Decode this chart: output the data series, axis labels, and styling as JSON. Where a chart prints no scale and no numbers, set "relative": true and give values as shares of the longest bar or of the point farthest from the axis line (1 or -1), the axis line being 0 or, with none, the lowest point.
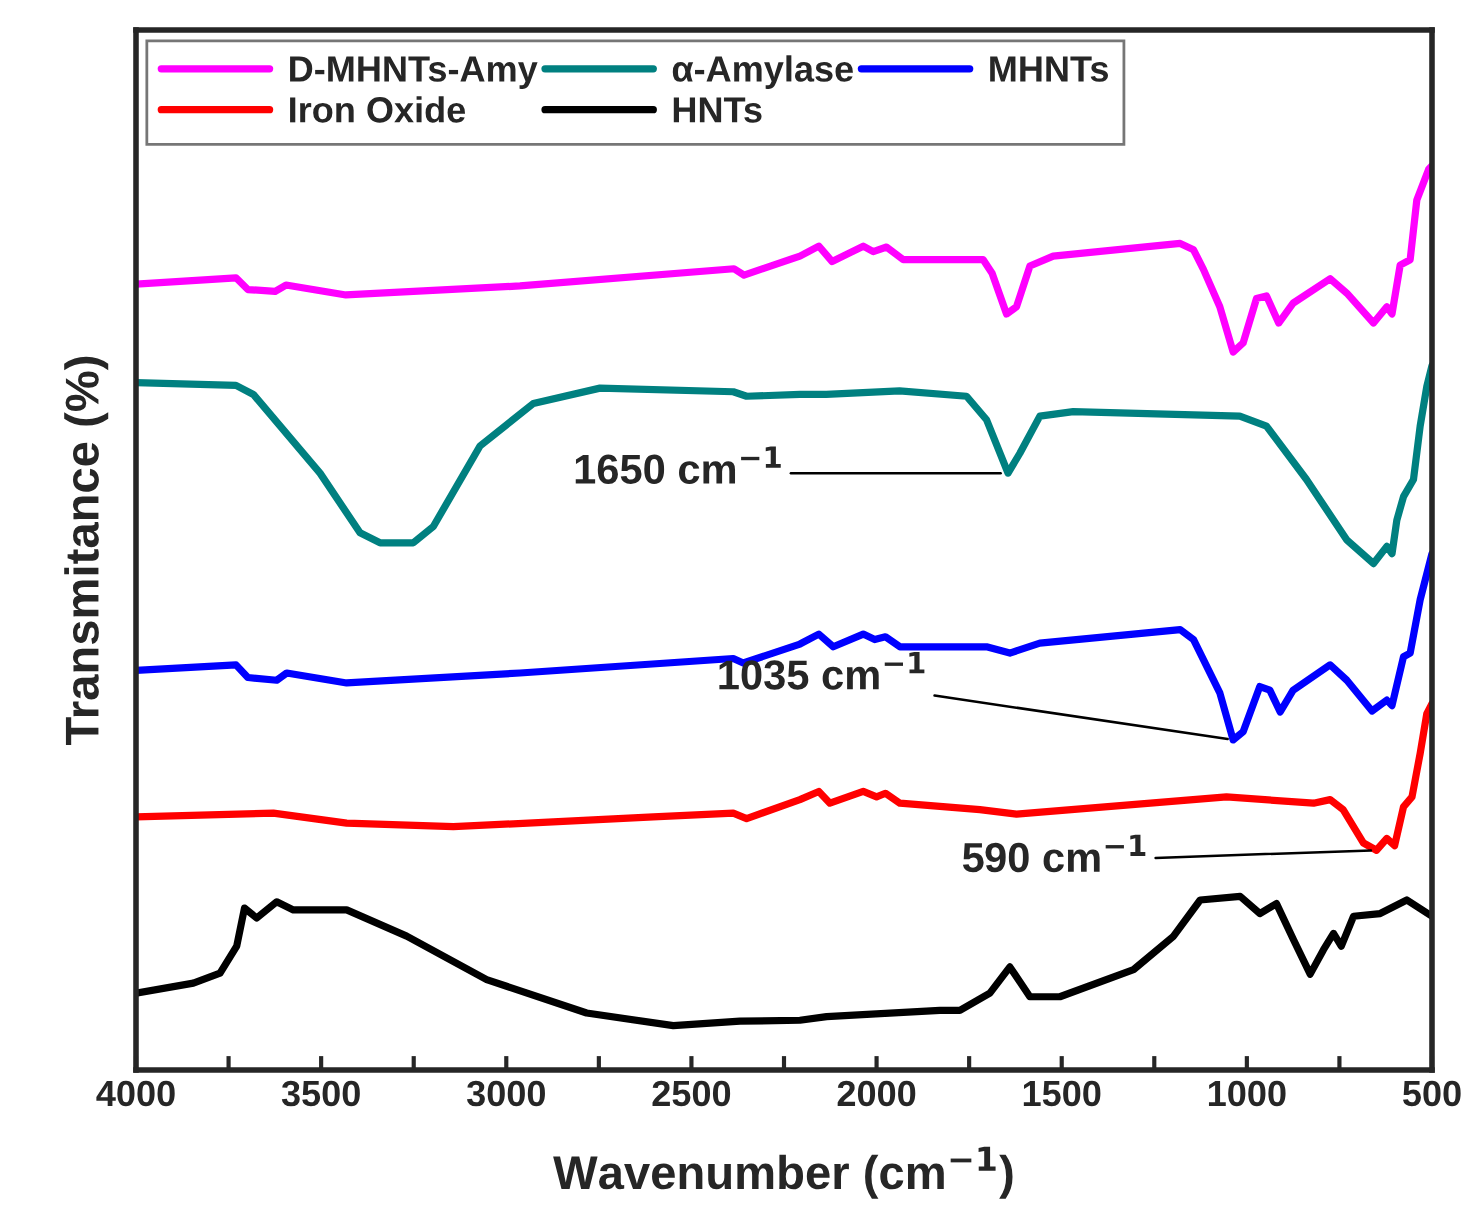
{
  "chart_data": {
    "type": "line",
    "relative": true,
    "xlabel": "Wavenumber (cm$^{−1}$)",
    "ylabel": "Transmitance (%)",
    "xlim": [
      4000,
      500
    ],
    "xticks": [
      4000,
      {
        "value": 3750,
        "label": null
      },
      3500,
      {
        "value": 3250,
        "label": null
      },
      3000,
      {
        "value": 2750,
        "label": null
      },
      2500,
      {
        "value": 2250,
        "label": null
      },
      2000,
      {
        "value": 1750,
        "label": null
      },
      1500,
      {
        "value": 1250,
        "label": null
      },
      1000,
      {
        "value": 750,
        "label": null
      },
      500
    ],
    "tick_labels": "x",
    "grid": false,
    "legend": "top left",
    "series": [
      {
        "name": "D-MHNTs-Amy",
        "color": "#ff00ff",
        "x": [
          4000,
          3730,
          3698,
          3624,
          3595,
          3433,
          2963,
          2385,
          2358,
          2207,
          2156,
          2120,
          2036,
          2009,
          1973,
          1928,
          1712,
          1688,
          1649,
          1622,
          1586,
          1523,
          1180,
          1144,
          1117,
          1073,
          1037,
          1010,
          974,
          947,
          914,
          875,
          775,
          730,
          658,
          622,
          608,
          586,
          559,
          541,
          509,
          500
        ],
        "values": [
          0.869,
          0.876,
          0.863,
          0.861,
          0.868,
          0.857,
          0.867,
          0.886,
          0.879,
          0.9,
          0.911,
          0.894,
          0.911,
          0.905,
          0.91,
          0.896,
          0.896,
          0.881,
          0.836,
          0.844,
          0.889,
          0.9,
          0.914,
          0.907,
          0.885,
          0.844,
          0.794,
          0.804,
          0.853,
          0.856,
          0.826,
          0.848,
          0.875,
          0.859,
          0.826,
          0.844,
          0.836,
          0.89,
          0.896,
          0.962,
          0.996,
          1.0
        ]
      },
      {
        "name": "α-Amylase",
        "color": "#008080",
        "x": [
          4000,
          3730,
          3683,
          3503,
          3395,
          3341,
          3251,
          3197,
          3071,
          2927,
          2747,
          2387,
          2351,
          2207,
          2136,
          1938,
          1757,
          1703,
          1645,
          1613,
          1559,
          1469,
          1019,
          947,
          839,
          730,
          658,
          622,
          608,
          595,
          577,
          550,
          532,
          514,
          500
        ],
        "values": [
          0.76,
          0.757,
          0.747,
          0.66,
          0.594,
          0.583,
          0.583,
          0.601,
          0.69,
          0.737,
          0.754,
          0.75,
          0.745,
          0.747,
          0.747,
          0.751,
          0.745,
          0.719,
          0.66,
          0.682,
          0.723,
          0.728,
          0.723,
          0.712,
          0.653,
          0.586,
          0.56,
          0.579,
          0.571,
          0.608,
          0.634,
          0.653,
          0.712,
          0.756,
          0.779
        ]
      },
      {
        "name": "MHNTs",
        "color": "#0000ff",
        "x": [
          4000,
          3730,
          3698,
          3620,
          3593,
          3431,
          2963,
          2387,
          2360,
          2207,
          2156,
          2117,
          2036,
          2005,
          1976,
          1937,
          1703,
          1640,
          1559,
          1180,
          1144,
          1073,
          1037,
          1010,
          965,
          938,
          910,
          875,
          775,
          730,
          662,
          622,
          608,
          577,
          559,
          532,
          500
        ],
        "values": [
          0.442,
          0.448,
          0.434,
          0.431,
          0.439,
          0.428,
          0.439,
          0.455,
          0.45,
          0.471,
          0.482,
          0.468,
          0.482,
          0.476,
          0.479,
          0.468,
          0.468,
          0.461,
          0.472,
          0.487,
          0.476,
          0.417,
          0.365,
          0.374,
          0.424,
          0.42,
          0.396,
          0.42,
          0.448,
          0.431,
          0.397,
          0.409,
          0.403,
          0.457,
          0.461,
          0.52,
          0.571
        ]
      },
      {
        "name": "Iron Oxide",
        "color": "#ff0000",
        "x": [
          4000,
          3629,
          3431,
          3143,
          2603,
          2387,
          2351,
          2207,
          2156,
          2126,
          2036,
          2000,
          1976,
          1937,
          1721,
          1622,
          1055,
          820,
          775,
          740,
          685,
          650,
          622,
          601,
          577,
          554,
          532,
          514,
          500
        ],
        "values": [
          0.28,
          0.284,
          0.273,
          0.269,
          0.28,
          0.284,
          0.278,
          0.299,
          0.308,
          0.295,
          0.308,
          0.302,
          0.306,
          0.295,
          0.288,
          0.283,
          0.302,
          0.295,
          0.299,
          0.288,
          0.251,
          0.243,
          0.256,
          0.248,
          0.291,
          0.302,
          0.35,
          0.394,
          0.405
        ]
      },
      {
        "name": "HNTs",
        "color": "#000000",
        "x": [
          4000,
          3845,
          3773,
          3728,
          3707,
          3674,
          3620,
          3575,
          3431,
          3269,
          3053,
          2783,
          2549,
          2369,
          2207,
          2135,
          1829,
          1775,
          1694,
          1640,
          1586,
          1505,
          1306,
          1198,
          1126,
          1018,
          965,
          920,
          874,
          829,
          793,
          766,
          745,
          712,
          640,
          568,
          500
        ],
        "values": [
          0.085,
          0.096,
          0.107,
          0.137,
          0.179,
          0.168,
          0.186,
          0.177,
          0.177,
          0.148,
          0.1,
          0.063,
          0.049,
          0.054,
          0.055,
          0.059,
          0.066,
          0.066,
          0.085,
          0.114,
          0.081,
          0.081,
          0.111,
          0.148,
          0.188,
          0.192,
          0.173,
          0.184,
          0.144,
          0.106,
          0.133,
          0.151,
          0.137,
          0.17,
          0.173,
          0.188,
          0.17
        ]
      }
    ],
    "annotations": [
      {
        "text": "1650 cm$^{−1}$",
        "x": 1650,
        "y": 0.66
      },
      {
        "text": "1035 cm$^{−1}$",
        "x": 1037,
        "y": 0.365
      },
      {
        "text": "590 cm$^{−1}$",
        "x": 650,
        "y": 0.243
      }
    ]
  }
}
